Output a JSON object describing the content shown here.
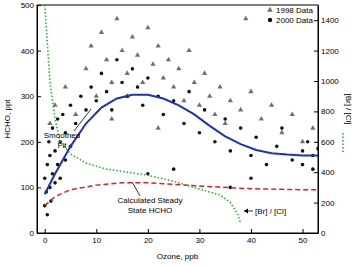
{
  "chart_data": {
    "type": "scatter",
    "x_label": "Ozone, ppb",
    "y_label": "HCHO, ppt",
    "y2_label": "[Br] / [Cl]",
    "xlim": [
      -1.5,
      53
    ],
    "xticks": [
      0,
      10,
      20,
      30,
      40,
      50
    ],
    "ylim": [
      0,
      500
    ],
    "yticks": [
      0,
      100,
      200,
      300,
      400,
      500
    ],
    "y2lim": [
      0,
      1500
    ],
    "y2ticks": [
      0,
      200,
      400,
      600,
      800,
      1000,
      1200,
      1400
    ],
    "legend": "upper right",
    "annotations": [
      [
        "Smoothed",
        "Fit"
      ],
      [
        "Calculated Steady",
        "State HCHO"
      ],
      [
        "[Br] / [Cl]"
      ]
    ],
    "series": [
      {
        "name": "1998 Data",
        "type": "scatter",
        "marker": "triangle",
        "color": "#707070",
        "x": [
          1,
          2,
          4,
          6,
          8,
          9,
          10,
          11,
          12,
          13,
          14,
          15,
          16,
          17,
          18,
          19,
          20,
          21,
          22,
          23,
          24,
          25,
          26,
          27,
          28,
          29,
          30,
          31,
          32,
          33,
          34,
          35,
          36,
          38,
          40,
          42,
          44,
          46,
          48,
          50,
          52,
          39,
          16,
          13,
          22
        ],
        "values": [
          240,
          280,
          320,
          260,
          360,
          410,
          300,
          440,
          380,
          330,
          470,
          400,
          350,
          430,
          390,
          330,
          450,
          370,
          410,
          340,
          380,
          320,
          360,
          290,
          400,
          330,
          280,
          350,
          300,
          260,
          320,
          240,
          290,
          270,
          310,
          250,
          280,
          220,
          260,
          200,
          230,
          470,
          300,
          250,
          230
        ]
      },
      {
        "name": "2000 Data",
        "type": "scatter",
        "marker": "circle",
        "color": "#111111",
        "x": [
          0,
          0,
          0.3,
          0.5,
          0.5,
          0.8,
          1,
          1,
          1.2,
          1.5,
          1.5,
          2,
          2,
          2.5,
          2.5,
          3,
          3,
          3.5,
          4,
          4,
          5,
          5,
          6,
          7,
          8,
          9,
          10,
          11,
          12,
          13,
          14,
          15,
          16,
          17,
          18,
          19,
          20,
          22,
          23,
          25,
          27,
          28,
          30,
          31,
          33,
          35,
          36,
          38,
          40,
          41,
          43,
          45,
          46,
          48,
          50,
          50,
          51,
          52,
          52,
          53,
          20,
          25,
          40,
          36
        ],
        "values": [
          60,
          120,
          90,
          150,
          40,
          200,
          100,
          170,
          70,
          230,
          130,
          180,
          110,
          250,
          150,
          200,
          120,
          260,
          220,
          160,
          280,
          190,
          240,
          300,
          270,
          320,
          290,
          350,
          310,
          270,
          380,
          330,
          300,
          360,
          320,
          280,
          340,
          300,
          260,
          290,
          240,
          310,
          220,
          270,
          200,
          250,
          180,
          230,
          170,
          210,
          150,
          190,
          230,
          160,
          180,
          150,
          200,
          170,
          140,
          185,
          130,
          140,
          120,
          100
        ]
      },
      {
        "type": "line",
        "line_style": "solid",
        "color": "#1f2fbf",
        "x": [
          0,
          2,
          5,
          8,
          11,
          14,
          17,
          20,
          23,
          26,
          29,
          32,
          35,
          38,
          41,
          44,
          47,
          50,
          53
        ],
        "values": [
          85,
          130,
          190,
          240,
          275,
          295,
          303,
          303,
          295,
          280,
          260,
          235,
          212,
          195,
          182,
          175,
          172,
          170,
          170
        ]
      },
      {
        "type": "line",
        "line_style": "dashed",
        "color": "#e02020",
        "x": [
          0,
          2,
          5,
          10,
          15,
          20,
          30,
          40,
          50,
          53
        ],
        "values": [
          60,
          80,
          95,
          105,
          110,
          110,
          103,
          97,
          95,
          95
        ]
      },
      {
        "type": "line",
        "line_style": "dotted",
        "color": "#20b020",
        "axis": "y2",
        "x": [
          0,
          0.5,
          1,
          2,
          3,
          5,
          8,
          12,
          16,
          20,
          25,
          30,
          34,
          36,
          37.5,
          38
        ],
        "values": [
          1500,
          1250,
          1000,
          750,
          600,
          520,
          460,
          420,
          400,
          380,
          340,
          290,
          250,
          200,
          120,
          60
        ]
      }
    ]
  }
}
